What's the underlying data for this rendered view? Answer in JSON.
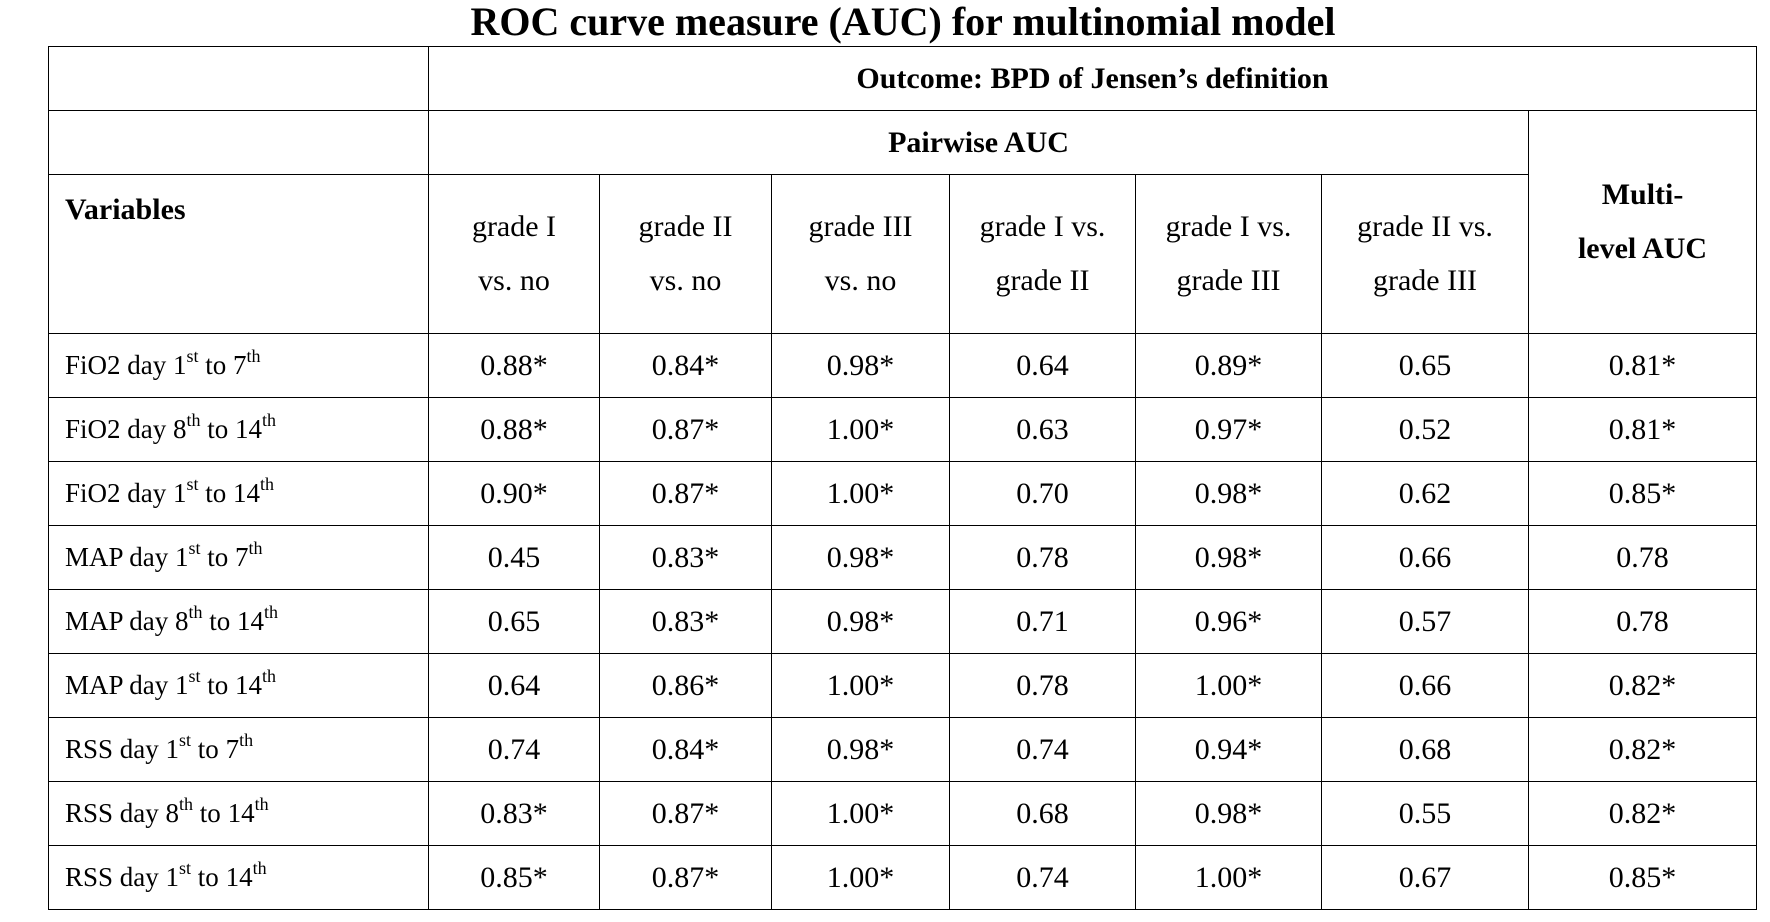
{
  "title": "ROC curve measure (AUC) for multinomial model",
  "table": {
    "outcome_header": "Outcome: BPD of Jensen’s definition",
    "pairwise_header": "Pairwise AUC",
    "variables_header": "Variables",
    "multilevel_header": [
      "Multi-",
      "level AUC"
    ],
    "subheaders": [
      [
        "grade I",
        "vs. no"
      ],
      [
        "grade II",
        "vs. no"
      ],
      [
        "grade III",
        "vs. no"
      ],
      [
        "grade I vs.",
        "grade II"
      ],
      [
        "grade I vs.",
        "grade III"
      ],
      [
        "grade II vs.",
        "grade III"
      ]
    ],
    "rows": [
      {
        "var": "FiO2",
        "d1": "1",
        "s1": "st",
        "d2": "7",
        "s2": "th",
        "values": [
          "0.88*",
          "0.84*",
          "0.98*",
          "0.64",
          "0.89*",
          "0.65",
          "0.81*"
        ]
      },
      {
        "var": "FiO2",
        "d1": "8",
        "s1": "th",
        "d2": "14",
        "s2": "th",
        "values": [
          "0.88*",
          "0.87*",
          "1.00*",
          "0.63",
          "0.97*",
          "0.52",
          "0.81*"
        ]
      },
      {
        "var": "FiO2",
        "d1": "1",
        "s1": "st",
        "d2": "14",
        "s2": "th",
        "values": [
          "0.90*",
          "0.87*",
          "1.00*",
          "0.70",
          "0.98*",
          "0.62",
          "0.85*"
        ]
      },
      {
        "var": "MAP",
        "d1": "1",
        "s1": "st",
        "d2": "7",
        "s2": "th",
        "values": [
          "0.45",
          "0.83*",
          "0.98*",
          "0.78",
          "0.98*",
          "0.66",
          "0.78"
        ]
      },
      {
        "var": "MAP",
        "d1": "8",
        "s1": "th",
        "d2": "14",
        "s2": "th",
        "values": [
          "0.65",
          "0.83*",
          "0.98*",
          "0.71",
          "0.96*",
          "0.57",
          "0.78"
        ]
      },
      {
        "var": "MAP",
        "d1": "1",
        "s1": "st",
        "d2": "14",
        "s2": "th",
        "values": [
          "0.64",
          "0.86*",
          "1.00*",
          "0.78",
          "1.00*",
          "0.66",
          "0.82*"
        ]
      },
      {
        "var": "RSS",
        "d1": "1",
        "s1": "st",
        "d2": "7",
        "s2": "th",
        "values": [
          "0.74",
          "0.84*",
          "0.98*",
          "0.74",
          "0.94*",
          "0.68",
          "0.82*"
        ]
      },
      {
        "var": "RSS",
        "d1": "8",
        "s1": "th",
        "d2": "14",
        "s2": "th",
        "values": [
          "0.83*",
          "0.87*",
          "1.00*",
          "0.68",
          "0.98*",
          "0.55",
          "0.82*"
        ]
      },
      {
        "var": "RSS",
        "d1": "1",
        "s1": "st",
        "d2": "14",
        "s2": "th",
        "values": [
          "0.85*",
          "0.87*",
          "1.00*",
          "0.74",
          "1.00*",
          "0.67",
          "0.85*"
        ]
      }
    ]
  }
}
